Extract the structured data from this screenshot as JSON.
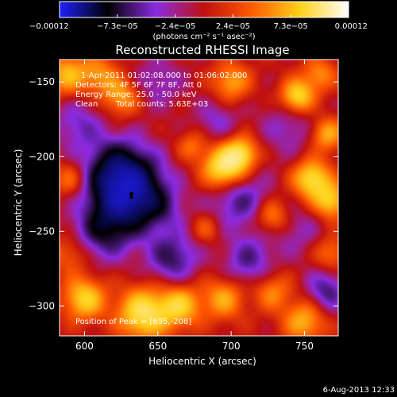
{
  "chart_data": {
    "type": "heatmap",
    "title": "Reconstructed RHESSI Image",
    "xlabel": "Heliocentric X (arcsec)",
    "ylabel": "Heliocentric Y (arcsec)",
    "xlim": [
      583,
      773
    ],
    "ylim": [
      -320,
      -135
    ],
    "xticks": [
      600,
      650,
      700,
      750
    ],
    "xtick_labels": [
      "600",
      "650",
      "700",
      "750"
    ],
    "yticks": [
      -300,
      -250,
      -200,
      -150
    ],
    "ytick_labels": [
      "−300",
      "−250",
      "−200",
      "−150"
    ],
    "grid": false,
    "colorbar": {
      "range": [
        -0.00012,
        0.00012
      ],
      "tick_labels": [
        "−0.00012",
        "−7.3e−05",
        "−2.4e−05",
        "2.4e−05",
        "7.3e−05",
        "0.00012"
      ],
      "unit_label": "(photons cm⁻² s⁻¹ asec⁻²)",
      "colors": [
        "#1f1fff",
        "#000000",
        "#8a2be2",
        "#c01010",
        "#ff5a00",
        "#ffd21a",
        "#ffffff"
      ]
    },
    "annotations": [
      "1-Apr-2011 01:02:08.000 to 01:06:02.000",
      "Detectors: 4F 5F 6F 7F 8F, Att 0",
      "Energy Range: 25.0 - 50.0 keV",
      "Clean",
      "Total counts: 5.63E+03",
      "Position of Peak = [695,-208]"
    ],
    "peak_position": [
      695,
      -208
    ],
    "blobs": [
      {
        "x": 632,
        "y": -226,
        "v": -1.0,
        "s": 17
      },
      {
        "x": 622,
        "y": -210,
        "v": -0.7,
        "s": 16
      },
      {
        "x": 612,
        "y": -250,
        "v": -0.55,
        "s": 14
      },
      {
        "x": 660,
        "y": -268,
        "v": -0.55,
        "s": 12
      },
      {
        "x": 705,
        "y": -228,
        "v": -0.5,
        "s": 14
      },
      {
        "x": 712,
        "y": -270,
        "v": -0.45,
        "s": 12
      },
      {
        "x": 765,
        "y": -290,
        "v": -0.5,
        "s": 10
      },
      {
        "x": 595,
        "y": -178,
        "v": -0.35,
        "s": 12
      },
      {
        "x": 650,
        "y": -150,
        "v": -0.3,
        "s": 12
      },
      {
        "x": 740,
        "y": -180,
        "v": -0.3,
        "s": 14
      },
      {
        "x": 690,
        "y": -175,
        "v": -0.3,
        "s": 10
      },
      {
        "x": 745,
        "y": -250,
        "v": -0.25,
        "s": 12
      },
      {
        "x": 695,
        "y": -208,
        "v": 1.0,
        "s": 10
      },
      {
        "x": 707,
        "y": -198,
        "v": 0.75,
        "s": 8
      },
      {
        "x": 755,
        "y": -215,
        "v": 0.85,
        "s": 9
      },
      {
        "x": 768,
        "y": -230,
        "v": 0.7,
        "s": 8
      },
      {
        "x": 745,
        "y": -160,
        "v": 0.85,
        "s": 8
      },
      {
        "x": 765,
        "y": -185,
        "v": 0.6,
        "s": 8
      },
      {
        "x": 640,
        "y": -305,
        "v": 0.9,
        "s": 12
      },
      {
        "x": 665,
        "y": -300,
        "v": 0.7,
        "s": 10
      },
      {
        "x": 600,
        "y": -295,
        "v": 0.75,
        "s": 10
      },
      {
        "x": 695,
        "y": -295,
        "v": 0.55,
        "s": 10
      },
      {
        "x": 750,
        "y": -310,
        "v": 0.6,
        "s": 10
      },
      {
        "x": 588,
        "y": -145,
        "v": 0.6,
        "s": 10
      },
      {
        "x": 625,
        "y": -160,
        "v": 0.55,
        "s": 9
      },
      {
        "x": 610,
        "y": -145,
        "v": 0.45,
        "s": 9
      },
      {
        "x": 700,
        "y": -150,
        "v": 0.55,
        "s": 9
      },
      {
        "x": 728,
        "y": -240,
        "v": 0.5,
        "s": 8
      },
      {
        "x": 590,
        "y": -215,
        "v": 0.4,
        "s": 8
      },
      {
        "x": 673,
        "y": -193,
        "v": 0.35,
        "s": 7
      },
      {
        "x": 728,
        "y": -290,
        "v": 0.45,
        "s": 9
      },
      {
        "x": 768,
        "y": -265,
        "v": 0.4,
        "s": 8
      },
      {
        "x": 760,
        "y": -145,
        "v": 0.45,
        "s": 8
      },
      {
        "x": 683,
        "y": -248,
        "v": 0.3,
        "s": 7
      },
      {
        "x": 590,
        "y": -265,
        "v": 0.35,
        "s": 9
      },
      {
        "x": 655,
        "y": -235,
        "v": -0.2,
        "s": 10
      }
    ]
  },
  "footer": {
    "timestamp": "6-Aug-2013 12:33"
  }
}
